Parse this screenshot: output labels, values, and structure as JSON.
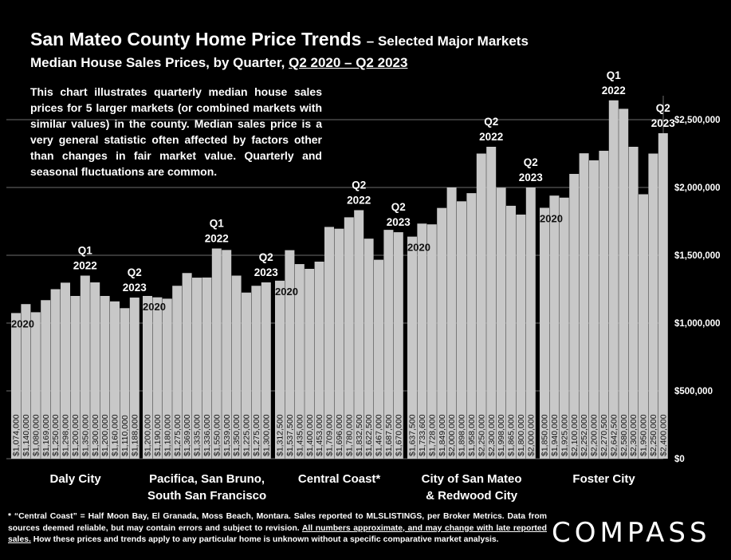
{
  "header": {
    "title_main": "San Mateo County Home Price Trends",
    "title_suffix": "– Selected Major Markets",
    "subtitle_lead": "Median House Sales Prices, by Quarter,",
    "subtitle_range": "Q2 2020 – Q2 2023"
  },
  "intro_text": "This chart illustrates quarterly median house sales prices for 5 larger markets (or combined markets with similar values) in the county. Median sales price is a very general statistic often affected by factors other than changes in fair market value. Quarterly and seasonal fluctuations are common.",
  "footnote": {
    "text1": "* “Central Coast” = Half Moon Bay, El Granada, Moss Beach, Montara. Sales reported to MLSLISTINGS, per Broker Metrics. Data from sources deemed reliable, but may contain errors and subject to revision.",
    "underlined": "All numbers approximate, and may change with late reported sales.",
    "text2": "How these prices and trends apply to any particular home is unknown without a specific comparative market analysis."
  },
  "logo": "COMPASS",
  "colors": {
    "background": "#000000",
    "bar": "#c8c8c8",
    "gridline": "#6e6e6e",
    "text": "#ffffff"
  },
  "chart_data": {
    "type": "bar",
    "ylim": [
      0,
      2500000
    ],
    "y_ticks": [
      {
        "value": 0,
        "label": "$0"
      },
      {
        "value": 500000,
        "label": "$500,000"
      },
      {
        "value": 1000000,
        "label": "$1,000,000"
      },
      {
        "value": 1500000,
        "label": "$1,500,000"
      },
      {
        "value": 2000000,
        "label": "$2,000,000"
      },
      {
        "value": 2500000,
        "label": "$2,500,000"
      }
    ],
    "grid": true,
    "groups": [
      {
        "name": "Daly City",
        "values": [
          1074000,
          1140000,
          1080000,
          1169000,
          1250000,
          1298000,
          1200000,
          1350000,
          1300000,
          1200000,
          1160000,
          1110000,
          1188000
        ],
        "labels": [
          "$1,074,000",
          "$1,140,000",
          "$1,080,000",
          "$1,169,000",
          "$1,250,000",
          "$1,298,000",
          "$1,200,000",
          "$1,350,000",
          "$1,300,000",
          "$1,200,000",
          "$1,160,000",
          "$1,110,000",
          "$1,188,000"
        ],
        "annotations": [
          {
            "index": 0,
            "text": [
              "2020"
            ],
            "pos": "inside"
          },
          {
            "index": 7,
            "text": [
              "Q1",
              "2022"
            ],
            "pos": "above"
          },
          {
            "index": 12,
            "text": [
              "Q2",
              "2023"
            ],
            "pos": "above"
          }
        ]
      },
      {
        "name": "Pacifica, San Bruno, South San Francisco",
        "name_lines": [
          "Pacifica, San Bruno,",
          "South San Francisco"
        ],
        "values": [
          1200000,
          1190000,
          1180000,
          1275000,
          1369000,
          1335000,
          1336000,
          1550000,
          1539000,
          1350000,
          1225000,
          1275000,
          1300000
        ],
        "labels": [
          "$1,200,000",
          "$1,190,000",
          "$1,180,000",
          "$1,275,000",
          "$1,369,000",
          "$1,335,000",
          "$1,336,000",
          "$1,550,000",
          "$1,539,000",
          "$1,350,000",
          "$1,225,000",
          "$1,275,000",
          "$1,300,000"
        ],
        "annotations": [
          {
            "index": 0,
            "text": [
              "2020"
            ],
            "pos": "inside"
          },
          {
            "index": 7,
            "text": [
              "Q1",
              "2022"
            ],
            "pos": "above"
          },
          {
            "index": 12,
            "text": [
              "Q2",
              "2023"
            ],
            "pos": "above"
          }
        ]
      },
      {
        "name": "Central Coast*",
        "values": [
          1312500,
          1537500,
          1435000,
          1400000,
          1453000,
          1709000,
          1696000,
          1780000,
          1832500,
          1622500,
          1467000,
          1687500,
          1670000
        ],
        "labels": [
          "$1,312,500",
          "$1,537,500",
          "$1,435,000",
          "$1,400,000",
          "$1,453,000",
          "$1,709,000",
          "$1,696,000",
          "$1,780,000",
          "$1,832,500",
          "$1,622,500",
          "$1,467,000",
          "$1,687,500",
          "$1,670,000"
        ],
        "annotations": [
          {
            "index": 0,
            "text": [
              "2020"
            ],
            "pos": "inside"
          },
          {
            "index": 8,
            "text": [
              "Q2",
              "2022"
            ],
            "pos": "above"
          },
          {
            "index": 12,
            "text": [
              "Q2",
              "2023"
            ],
            "pos": "above"
          }
        ]
      },
      {
        "name": "City of San Mateo & Redwood City",
        "name_lines": [
          "City of San Mateo",
          "& Redwood City"
        ],
        "values": [
          1637500,
          1733600,
          1728000,
          1849000,
          2000000,
          1898000,
          1958000,
          2250000,
          2300000,
          1998000,
          1865000,
          1800000,
          2000000
        ],
        "labels": [
          "$1,637,500",
          "$1,733,600",
          "$1,728,000",
          "$1,849,000",
          "$2,000,000",
          "$1,898,000",
          "$1,958,000",
          "$2,250,000",
          "$2,300,000",
          "$1,998,000",
          "$1,865,000",
          "$1,800,000",
          "$2,000,000"
        ],
        "annotations": [
          {
            "index": 0,
            "text": [
              "2020"
            ],
            "pos": "inside"
          },
          {
            "index": 8,
            "text": [
              "Q2",
              "2022"
            ],
            "pos": "above"
          },
          {
            "index": 12,
            "text": [
              "Q2",
              "2023"
            ],
            "pos": "above"
          }
        ]
      },
      {
        "name": "Foster City",
        "values": [
          1850000,
          1940000,
          1925000,
          2100000,
          2252000,
          2200000,
          2270500,
          2642500,
          2580000,
          2300000,
          1950000,
          2250000,
          2400000
        ],
        "labels": [
          "$1,850,000",
          "$1,940,000",
          "$1,925,000",
          "$2,100,000",
          "$2,252,000",
          "$2,200,000",
          "$2,270,500",
          "$2,642,500",
          "$2,580,000",
          "$2,300,000",
          "$1,950,000",
          "$2,250,000",
          "$2,400,000"
        ],
        "annotations": [
          {
            "index": 0,
            "text": [
              "2020"
            ],
            "pos": "inside"
          },
          {
            "index": 7,
            "text": [
              "Q1",
              "2022"
            ],
            "pos": "above"
          },
          {
            "index": 12,
            "text": [
              "Q2",
              "2023"
            ],
            "pos": "above"
          }
        ]
      }
    ]
  }
}
